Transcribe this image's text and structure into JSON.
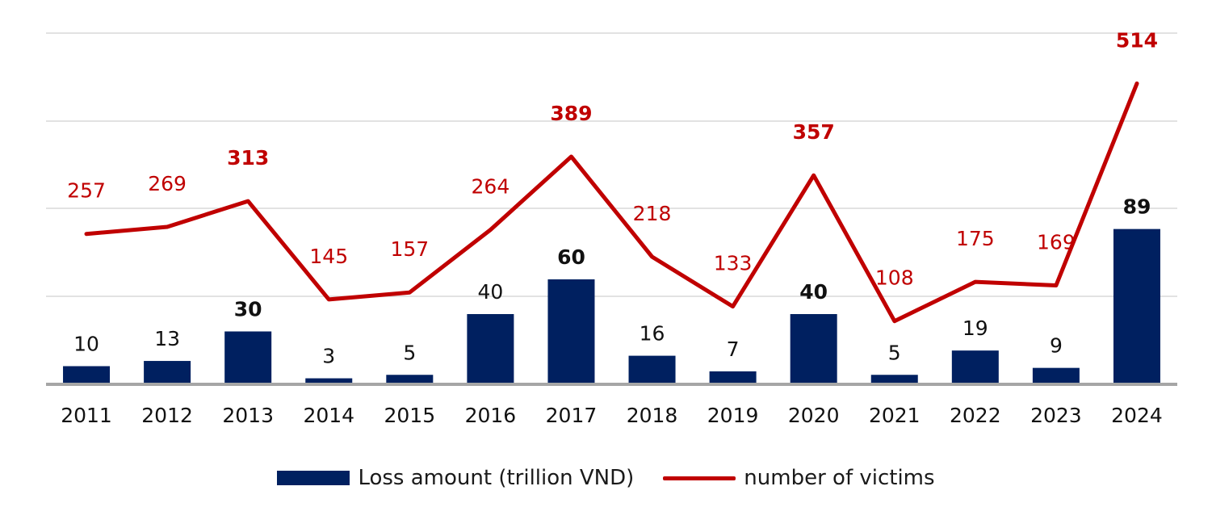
{
  "chart_data": {
    "type": "bar",
    "categories": [
      "2011",
      "2012",
      "2013",
      "2014",
      "2015",
      "2016",
      "2017",
      "2018",
      "2019",
      "2020",
      "2021",
      "2022",
      "2023",
      "2024"
    ],
    "series": [
      {
        "name": "Loss amount (trillion VND)",
        "type": "bar",
        "color": "#002060",
        "values": [
          10,
          13,
          30,
          3,
          5,
          40,
          60,
          16,
          7,
          40,
          5,
          19,
          9,
          89
        ],
        "bold_labels": [
          false,
          false,
          true,
          false,
          false,
          false,
          true,
          false,
          false,
          true,
          false,
          false,
          false,
          true
        ]
      },
      {
        "name": "number of victims",
        "type": "line",
        "color": "#C00000",
        "values": [
          257,
          269,
          313,
          145,
          157,
          264,
          389,
          218,
          133,
          357,
          108,
          175,
          169,
          514
        ],
        "bold_labels": [
          false,
          false,
          true,
          false,
          false,
          false,
          true,
          false,
          false,
          true,
          false,
          false,
          false,
          true
        ]
      }
    ],
    "axes": {
      "y_left_range": [
        0,
        200
      ],
      "y_right_range": [
        0,
        600
      ],
      "y_tick_labels_shown": false,
      "gridlines": true
    },
    "legend_position": "bottom"
  }
}
